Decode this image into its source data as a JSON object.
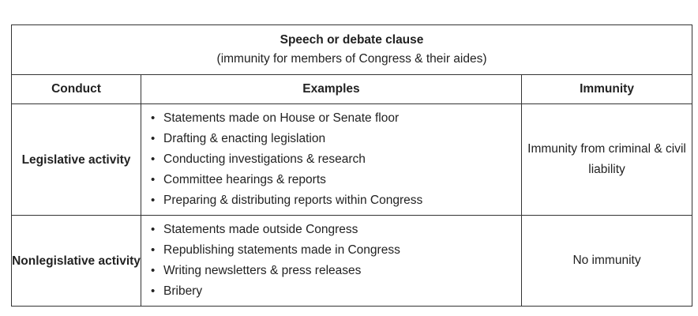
{
  "title": {
    "main": "Speech or debate clause",
    "sub": "(immunity for members of Congress & their aides)"
  },
  "headers": {
    "conduct": "Conduct",
    "examples": "Examples",
    "immunity": "Immunity"
  },
  "rows": [
    {
      "conduct": "Legislative activity",
      "examples": [
        "Statements made on House or Senate floor",
        "Drafting & enacting legislation",
        "Conducting investigations & research",
        "Committee hearings & reports",
        "Preparing & distributing reports within Congress"
      ],
      "immunity": "Immunity from criminal & civil liability"
    },
    {
      "conduct": "Nonlegislative activity",
      "examples": [
        "Statements made outside Congress",
        "Republishing statements made in Congress",
        "Writing newsletters & press releases",
        "Bribery"
      ],
      "immunity": "No immunity"
    }
  ]
}
